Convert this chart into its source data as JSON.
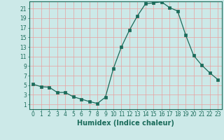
{
  "x": [
    0,
    1,
    2,
    3,
    4,
    5,
    6,
    7,
    8,
    9,
    10,
    11,
    12,
    13,
    14,
    15,
    16,
    17,
    18,
    19,
    20,
    21,
    22,
    23
  ],
  "y": [
    5.2,
    4.7,
    4.6,
    3.5,
    3.5,
    2.6,
    2.1,
    1.6,
    1.2,
    2.5,
    8.5,
    13,
    16.5,
    19.5,
    22,
    22.2,
    22.4,
    21.2,
    20.5,
    15.5,
    11.2,
    9.2,
    7.6,
    6.2
  ],
  "line_color": "#1a6b5a",
  "marker": "s",
  "marker_size": 2.2,
  "bg_color": "#cce9e8",
  "grid_color": "#e8a0a0",
  "xlabel": "Humidex (Indice chaleur)",
  "xlim": [
    -0.5,
    23.5
  ],
  "ylim": [
    0,
    22.5
  ],
  "xticks": [
    0,
    1,
    2,
    3,
    4,
    5,
    6,
    7,
    8,
    9,
    10,
    11,
    12,
    13,
    14,
    15,
    16,
    17,
    18,
    19,
    20,
    21,
    22,
    23
  ],
  "yticks": [
    1,
    3,
    5,
    7,
    9,
    11,
    13,
    15,
    17,
    19,
    21
  ],
  "tick_label_fontsize": 5.5,
  "xlabel_fontsize": 7.0
}
